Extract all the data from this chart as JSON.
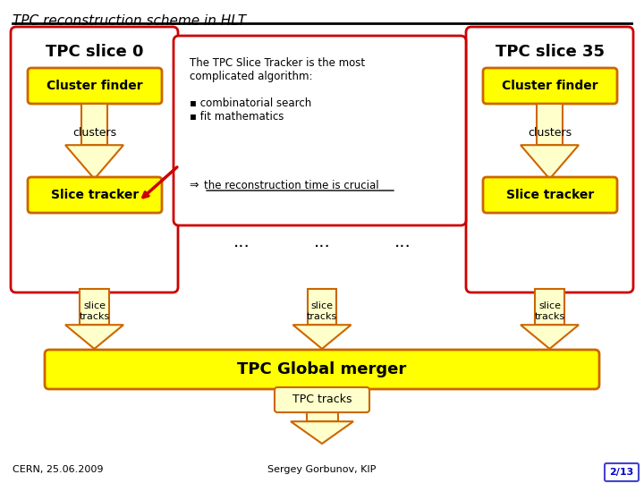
{
  "title": "TPC reconstruction scheme in HLT",
  "bg_color": "#ffffff",
  "slice0_title": "TPC slice 0",
  "slice35_title": "TPC slice 35",
  "cluster_finder": "Cluster finder",
  "clusters": "clusters",
  "slice_tracker": "Slice tracker",
  "slice_tracks": "slice\ntracks",
  "global_merger": "TPC Global merger",
  "tpc_tracks": "TPC tracks",
  "dots": "...",
  "callout_text": "The TPC Slice Tracker is the most\ncomplicated algorithm:\n\n▪ combinatorial search\n▪ fit mathematics\n\n⇒ the reconstruction time is crucial",
  "footer_left": "CERN, 25.06.2009",
  "footer_center": "Sergey Gorbunov, KIP",
  "footer_right": "2/13",
  "yellow_fill": "#ffff00",
  "light_yellow_fill": "#ffffcc",
  "red_border": "#cc0000",
  "orange_border": "#cc6600",
  "dark_red": "#990000"
}
